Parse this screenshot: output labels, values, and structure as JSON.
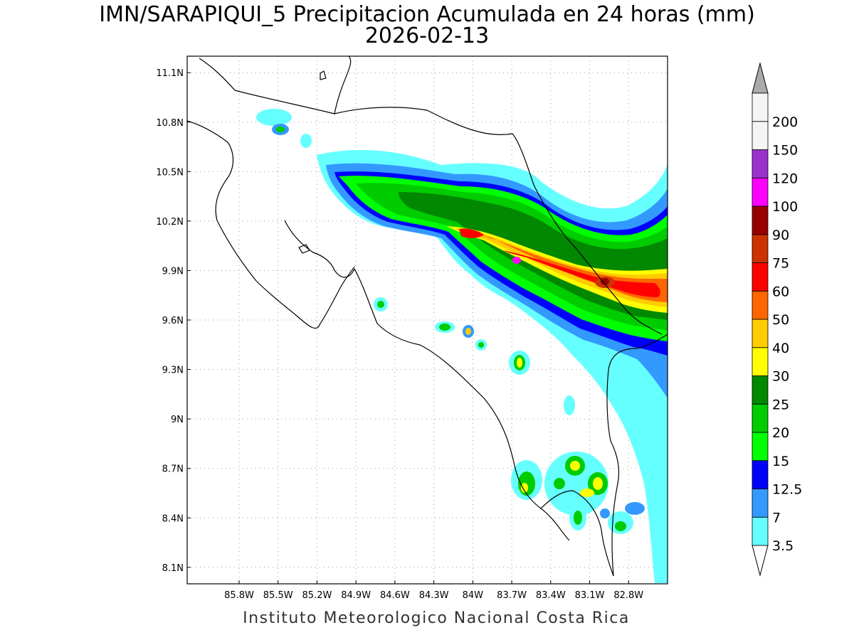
{
  "title": {
    "line1": "IMN/SARAPIQUI_5 Precipitacion Acumulada en 24 horas (mm)",
    "line2": "2026-02-13"
  },
  "footer": "Instituto Meteorologico Nacional Costa Rica",
  "map": {
    "lon_range": [
      -86.2,
      -82.5
    ],
    "lat_range": [
      8.0,
      11.2
    ],
    "lon_ticks": [
      "85.8W",
      "85.5W",
      "85.2W",
      "84.9W",
      "84.6W",
      "84.3W",
      "84W",
      "83.7W",
      "83.4W",
      "83.1W",
      "82.8W"
    ],
    "lon_tick_values": [
      -85.8,
      -85.5,
      -85.2,
      -84.9,
      -84.6,
      -84.3,
      -84.0,
      -83.7,
      -83.4,
      -83.1,
      -82.8
    ],
    "lat_ticks": [
      "11.1N",
      "10.8N",
      "10.5N",
      "10.2N",
      "9.9N",
      "9.6N",
      "9.3N",
      "9N",
      "8.7N",
      "8.4N",
      "8.1N"
    ],
    "lat_tick_values": [
      11.1,
      10.8,
      10.5,
      10.2,
      9.9,
      9.6,
      9.3,
      9.0,
      8.7,
      8.4,
      8.1
    ],
    "gridlines": "dotted"
  },
  "legend": {
    "levels": [
      "3.5",
      "7",
      "12.5",
      "15",
      "20",
      "25",
      "30",
      "40",
      "50",
      "60",
      "75",
      "90",
      "100",
      "120",
      "150",
      "200"
    ],
    "colors": [
      "#66ffff",
      "#3399ff",
      "#0000ff",
      "#00ff00",
      "#00cc00",
      "#008800",
      "#ffff00",
      "#ffcc00",
      "#ff6600",
      "#ff0000",
      "#cc3300",
      "#990000",
      "#ff00ff",
      "#9933cc",
      "#f5f5f5",
      "#aaaaaa"
    ],
    "bottom_arrow_color": "#ffffff",
    "top_arrow_color": "#aaaaaa"
  }
}
